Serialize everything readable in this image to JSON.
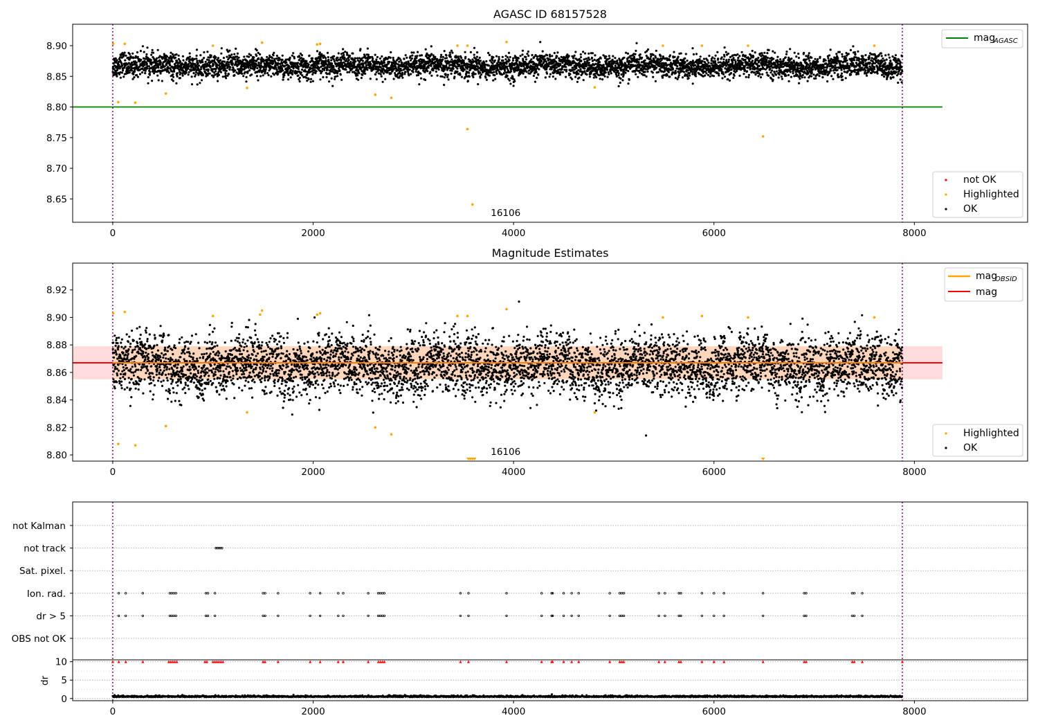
{
  "chart_data": [
    {
      "type": "scatter",
      "title": "AGASC ID 68157528",
      "xlim": [
        -400,
        9130
      ],
      "ylim": [
        8.612,
        8.935
      ],
      "xticks": [
        "0",
        "2000",
        "4000",
        "6000",
        "8000"
      ],
      "xtick_values": [
        0,
        2000,
        4000,
        6000,
        8000
      ],
      "yticks": [
        "8.65",
        "8.70",
        "8.75",
        "8.80",
        "8.85",
        "8.90"
      ],
      "ytick_values": [
        8.65,
        8.7,
        8.75,
        8.8,
        8.85,
        8.9
      ],
      "obs_bounds": [
        0,
        7880
      ],
      "obsid_label": "16106",
      "obsid_label_x": 3980,
      "agasc_mag": 8.8,
      "agasc_line_x": [
        -400,
        8280
      ],
      "ok_band": {
        "center": 8.867,
        "amplitude": 0.012
      },
      "highlighted_points": [
        {
          "x": 5,
          "y": 8.903
        },
        {
          "x": 55,
          "y": 8.808
        },
        {
          "x": 120,
          "y": 8.903
        },
        {
          "x": 225,
          "y": 8.807
        },
        {
          "x": 530,
          "y": 8.822
        },
        {
          "x": 1000,
          "y": 8.9
        },
        {
          "x": 1340,
          "y": 8.831
        },
        {
          "x": 1490,
          "y": 8.905
        },
        {
          "x": 2040,
          "y": 8.902
        },
        {
          "x": 2070,
          "y": 8.903
        },
        {
          "x": 2620,
          "y": 8.82
        },
        {
          "x": 2780,
          "y": 8.815
        },
        {
          "x": 3440,
          "y": 8.9
        },
        {
          "x": 3540,
          "y": 8.9
        },
        {
          "x": 3540,
          "y": 8.764
        },
        {
          "x": 3590,
          "y": 8.641
        },
        {
          "x": 3930,
          "y": 8.906
        },
        {
          "x": 4810,
          "y": 8.832
        },
        {
          "x": 5490,
          "y": 8.9
        },
        {
          "x": 5880,
          "y": 8.9
        },
        {
          "x": 6340,
          "y": 8.9
        },
        {
          "x": 6490,
          "y": 8.752
        },
        {
          "x": 7600,
          "y": 8.9
        }
      ],
      "legends": [
        {
          "position": "top-right",
          "entries": [
            {
              "label": "mag",
              "sub": "AGASC",
              "color": "#008000",
              "kind": "line"
            }
          ]
        },
        {
          "position": "bottom-right",
          "entries": [
            {
              "label": "not OK",
              "color": "#ff0000",
              "kind": "marker"
            },
            {
              "label": "Highlighted",
              "color": "#ffa500",
              "kind": "marker"
            },
            {
              "label": "OK",
              "color": "#000000",
              "kind": "marker"
            }
          ]
        }
      ]
    },
    {
      "type": "scatter",
      "title": "Magnitude Estimates",
      "xlim": [
        -400,
        9130
      ],
      "ylim": [
        8.7955,
        8.9395
      ],
      "xticks": [
        "0",
        "2000",
        "4000",
        "6000",
        "8000"
      ],
      "xtick_values": [
        0,
        2000,
        4000,
        6000,
        8000
      ],
      "yticks": [
        "8.80",
        "8.82",
        "8.84",
        "8.86",
        "8.88",
        "8.90",
        "8.92"
      ],
      "ytick_values": [
        8.8,
        8.82,
        8.84,
        8.86,
        8.88,
        8.9,
        8.92
      ],
      "obs_bounds": [
        0,
        7880
      ],
      "obsid_label": "16106",
      "obsid_label_x": 3980,
      "mag_line": 8.867,
      "mag_band": [
        8.855,
        8.879
      ],
      "obsid_line": {
        "y": 8.867,
        "x": [
          0,
          7880
        ]
      },
      "band_x": [
        -400,
        8280
      ],
      "ok_band": {
        "center": 8.865,
        "amplitude": 0.015
      },
      "highlighted_points": [
        {
          "x": 5,
          "y": 8.903
        },
        {
          "x": 55,
          "y": 8.808
        },
        {
          "x": 120,
          "y": 8.904
        },
        {
          "x": 225,
          "y": 8.807
        },
        {
          "x": 530,
          "y": 8.821
        },
        {
          "x": 1000,
          "y": 8.901
        },
        {
          "x": 1340,
          "y": 8.831
        },
        {
          "x": 1490,
          "y": 8.905
        },
        {
          "x": 1470,
          "y": 8.902
        },
        {
          "x": 2040,
          "y": 8.902
        },
        {
          "x": 2070,
          "y": 8.903
        },
        {
          "x": 2620,
          "y": 8.82
        },
        {
          "x": 2780,
          "y": 8.815
        },
        {
          "x": 3440,
          "y": 8.901
        },
        {
          "x": 3540,
          "y": 8.901
        },
        {
          "x": 3930,
          "y": 8.906
        },
        {
          "x": 4810,
          "y": 8.831
        },
        {
          "x": 5490,
          "y": 8.9
        },
        {
          "x": 5880,
          "y": 8.901
        },
        {
          "x": 6340,
          "y": 8.9
        },
        {
          "x": 7600,
          "y": 8.9
        }
      ],
      "clipped_points_x": [
        3550,
        3570,
        3590,
        3610,
        6490
      ],
      "legends": [
        {
          "position": "top-right",
          "entries": [
            {
              "label": "mag",
              "sub": "OBSID",
              "color": "#ffa500",
              "kind": "line"
            },
            {
              "label": "mag",
              "sub": "",
              "color": "#ff0000",
              "kind": "line"
            }
          ]
        },
        {
          "position": "bottom-right",
          "entries": [
            {
              "label": "Highlighted",
              "color": "#ffa500",
              "kind": "marker"
            },
            {
              "label": "OK",
              "color": "#000000",
              "kind": "marker"
            }
          ]
        }
      ]
    },
    {
      "type": "scatter",
      "title": "",
      "xlim": [
        -400,
        9130
      ],
      "xticks": [
        "0",
        "2000",
        "4000",
        "6000",
        "8000"
      ],
      "xtick_values": [
        0,
        2000,
        4000,
        6000,
        8000
      ],
      "obs_bounds": [
        0,
        7880
      ],
      "flag_categories": [
        "not Kalman",
        "not track",
        "Sat. pixel.",
        "Ion. rad.",
        "dr > 5",
        "OBS not OK"
      ],
      "flag_points": {
        "not track": [
          1030,
          1045,
          1060,
          1075,
          1090
        ],
        "Ion. rad.": [
          60,
          130,
          300,
          570,
          590,
          610,
          630,
          930,
          950,
          1020,
          1500,
          1520,
          1650,
          1970,
          2070,
          2250,
          2300,
          2550,
          2650,
          2670,
          2690,
          2710,
          3470,
          3550,
          3930,
          4280,
          4380,
          4390,
          4500,
          4580,
          4650,
          4960,
          5060,
          5080,
          5100,
          5450,
          5510,
          5650,
          5670,
          5880,
          6000,
          6100,
          6490,
          6900,
          6920,
          7380,
          7400,
          7480
        ],
        "dr > 5": [
          60,
          130,
          300,
          570,
          590,
          610,
          630,
          930,
          950,
          1020,
          1500,
          1520,
          1650,
          1970,
          2070,
          2250,
          2300,
          2550,
          2650,
          2670,
          2690,
          2710,
          3470,
          3550,
          3930,
          4280,
          4380,
          4390,
          4500,
          4580,
          4650,
          4960,
          5060,
          5080,
          5100,
          5450,
          5510,
          5650,
          5670,
          5880,
          6000,
          6100,
          6490,
          6900,
          6920,
          7380,
          7400,
          7480
        ]
      }
    },
    {
      "type": "scatter",
      "title": "",
      "ylabel": "dr",
      "xlim": [
        -400,
        9130
      ],
      "ylim": [
        -0.6,
        10.5
      ],
      "xticks": [
        "0",
        "2000",
        "4000",
        "6000",
        "8000"
      ],
      "xtick_values": [
        0,
        2000,
        4000,
        6000,
        8000
      ],
      "yticks": [
        "0",
        "5",
        "10"
      ],
      "ytick_values": [
        0,
        5,
        10
      ],
      "obs_bounds": [
        0,
        7880
      ],
      "baseline": {
        "center": 0.4,
        "amplitude": 0.25
      },
      "capped_value": 10,
      "capped_points_x": [
        0,
        60,
        130,
        300,
        560,
        580,
        600,
        620,
        640,
        920,
        940,
        1000,
        1020,
        1040,
        1060,
        1080,
        1100,
        1500,
        1520,
        1650,
        1970,
        2070,
        2250,
        2300,
        2550,
        2650,
        2670,
        2690,
        2710,
        3470,
        3550,
        3930,
        4280,
        4380,
        4390,
        4500,
        4580,
        4650,
        4960,
        5060,
        5080,
        5100,
        5450,
        5510,
        5650,
        5670,
        5880,
        6000,
        6100,
        6490,
        6900,
        6920,
        7380,
        7400,
        7480,
        7880
      ]
    }
  ]
}
